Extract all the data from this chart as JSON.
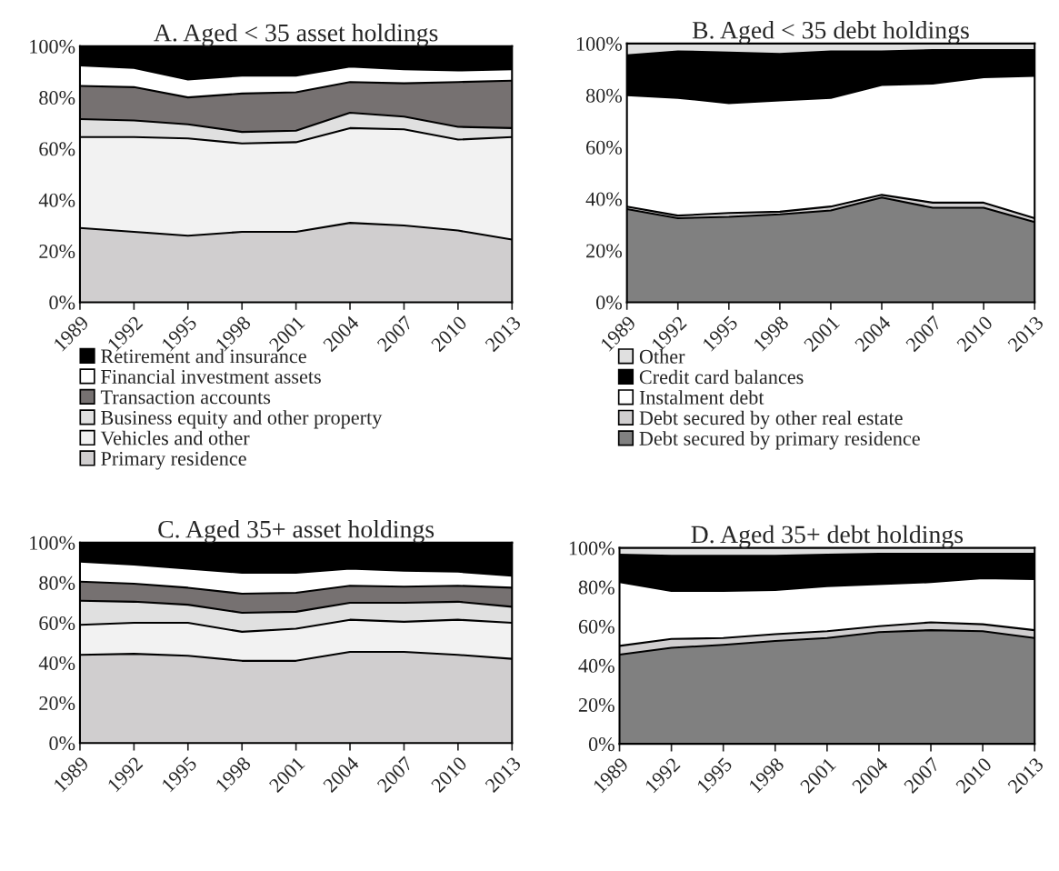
{
  "chart_data": [
    {
      "type": "area",
      "stacked": true,
      "title": "A. Aged < 35 asset holdings",
      "categories": [
        "1989",
        "1992",
        "1995",
        "1998",
        "2001",
        "2004",
        "2007",
        "2010",
        "2013"
      ],
      "ylim": [
        0,
        100
      ],
      "yticks": [
        {
          "value": 0,
          "label": "0%"
        },
        {
          "value": 20,
          "label": "20%"
        },
        {
          "value": 40,
          "label": "40%"
        },
        {
          "value": 60,
          "label": "60%"
        },
        {
          "value": 80,
          "label": "80%"
        },
        {
          "value": 100,
          "label": "100%"
        }
      ],
      "legend": "bottom",
      "series": [
        {
          "name": "Primary residence",
          "color": "#d0cecf",
          "values": [
            29,
            27.5,
            26,
            27.5,
            27.5,
            31,
            30,
            28,
            24.5
          ]
        },
        {
          "name": "Vehicles and other",
          "color": "#f2f2f2",
          "values": [
            35.5,
            37,
            38,
            34.5,
            35,
            37,
            37.5,
            35.5,
            40
          ]
        },
        {
          "name": "Business equity and other property",
          "color": "#e0e0e0",
          "values": [
            7,
            6.5,
            5.5,
            4.5,
            4.5,
            6,
            5,
            5,
            3.5
          ]
        },
        {
          "name": "Transaction accounts",
          "color": "#767171",
          "values": [
            13,
            13,
            10.5,
            15,
            15,
            12,
            13,
            17.5,
            18.5
          ]
        },
        {
          "name": "Financial investment assets",
          "color": "#ffffff",
          "values": [
            8,
            7.5,
            7,
            7,
            6.5,
            6,
            5.5,
            4.5,
            4.5
          ]
        },
        {
          "name": "Retirement and insurance",
          "color": "#000000",
          "values": [
            7.5,
            8.5,
            13,
            11.5,
            11.5,
            8,
            9,
            9.5,
            9
          ]
        }
      ]
    },
    {
      "type": "area",
      "stacked": true,
      "title": "B. Aged < 35 debt holdings",
      "categories": [
        "1989",
        "1992",
        "1995",
        "1998",
        "2001",
        "2004",
        "2007",
        "2010",
        "2013"
      ],
      "ylim": [
        0,
        100
      ],
      "yticks": [
        {
          "value": 0,
          "label": "0%"
        },
        {
          "value": 20,
          "label": "20%"
        },
        {
          "value": 40,
          "label": "40%"
        },
        {
          "value": 60,
          "label": "60%"
        },
        {
          "value": 80,
          "label": "80%"
        },
        {
          "value": 100,
          "label": "100%"
        }
      ],
      "legend": "bottom",
      "series": [
        {
          "name": "Debt secured by primary residence",
          "color": "#808080",
          "values": [
            36,
            32.5,
            33,
            34,
            35.5,
            40.5,
            36.5,
            36.5,
            31
          ]
        },
        {
          "name": "Debt secured by other real estate",
          "color": "#d0cecf",
          "values": [
            1,
            1,
            1.5,
            1,
            1.5,
            1,
            2,
            2,
            1.5
          ]
        },
        {
          "name": "Instalment debt",
          "color": "#ffffff",
          "values": [
            43,
            45.5,
            42.5,
            43,
            42,
            42.5,
            46,
            48.5,
            55
          ]
        },
        {
          "name": "Credit card balances",
          "color": "#000000",
          "values": [
            15.5,
            18,
            19.5,
            18,
            18,
            13,
            13,
            10.5,
            10
          ]
        },
        {
          "name": "Other",
          "color": "#e0e0e0",
          "values": [
            4.5,
            3,
            3.5,
            4,
            3,
            3,
            2.5,
            2.5,
            2.5
          ]
        }
      ]
    },
    {
      "type": "area",
      "stacked": true,
      "title": "C. Aged 35+ asset holdings",
      "categories": [
        "1989",
        "1992",
        "1995",
        "1998",
        "2001",
        "2004",
        "2007",
        "2010",
        "2013"
      ],
      "ylim": [
        0,
        100
      ],
      "yticks": [
        {
          "value": 0,
          "label": "0%"
        },
        {
          "value": 20,
          "label": "20%"
        },
        {
          "value": 40,
          "label": "40%"
        },
        {
          "value": 60,
          "label": "60%"
        },
        {
          "value": 80,
          "label": "80%"
        },
        {
          "value": 100,
          "label": "100%"
        }
      ],
      "series": [
        {
          "color": "#d0cecf",
          "values": [
            44,
            44.5,
            43.5,
            41,
            41,
            45.5,
            45.5,
            44,
            42
          ]
        },
        {
          "color": "#f2f2f2",
          "values": [
            15,
            15.5,
            16.5,
            14.5,
            16,
            16,
            15,
            17.5,
            18
          ]
        },
        {
          "color": "#e0e0e0",
          "values": [
            12,
            10.5,
            9,
            9.5,
            8.5,
            8.5,
            9.5,
            9,
            8
          ]
        },
        {
          "color": "#767171",
          "values": [
            9.5,
            9,
            8.5,
            9.5,
            9.5,
            8.5,
            8,
            8,
            9.5
          ]
        },
        {
          "color": "#ffffff",
          "values": [
            10,
            9.5,
            9.5,
            10.5,
            10,
            8.5,
            8,
            7,
            6
          ]
        },
        {
          "color": "#000000",
          "values": [
            9.5,
            11,
            13,
            15,
            15,
            13,
            14,
            14.5,
            16.5
          ]
        }
      ]
    },
    {
      "type": "area",
      "stacked": true,
      "title": "D. Aged 35+ debt holdings",
      "categories": [
        "1989",
        "1992",
        "1995",
        "1998",
        "2001",
        "2004",
        "2007",
        "2010",
        "2013"
      ],
      "ylim": [
        0,
        100
      ],
      "yticks": [
        {
          "value": 0,
          "label": "0%"
        },
        {
          "value": 20,
          "label": "20%"
        },
        {
          "value": 40,
          "label": "40%"
        },
        {
          "value": 60,
          "label": "60%"
        },
        {
          "value": 80,
          "label": "80%"
        },
        {
          "value": 100,
          "label": "100%"
        }
      ],
      "series": [
        {
          "color": "#808080",
          "values": [
            45.5,
            49,
            50.5,
            52.5,
            54,
            57,
            58,
            57.5,
            54
          ]
        },
        {
          "color": "#d0cecf",
          "values": [
            4.5,
            4.5,
            3.5,
            3.5,
            3.5,
            3,
            4,
            3.5,
            4
          ]
        },
        {
          "color": "#ffffff",
          "values": [
            32.5,
            24.5,
            24,
            22.5,
            23,
            21.5,
            20.5,
            23.5,
            26
          ]
        },
        {
          "color": "#000000",
          "values": [
            14,
            18,
            18,
            17.5,
            16,
            15.5,
            14.5,
            12.5,
            13
          ]
        },
        {
          "color": "#e0e0e0",
          "values": [
            3.5,
            4,
            4,
            4,
            3.5,
            3,
            3,
            3,
            3
          ]
        }
      ]
    }
  ]
}
